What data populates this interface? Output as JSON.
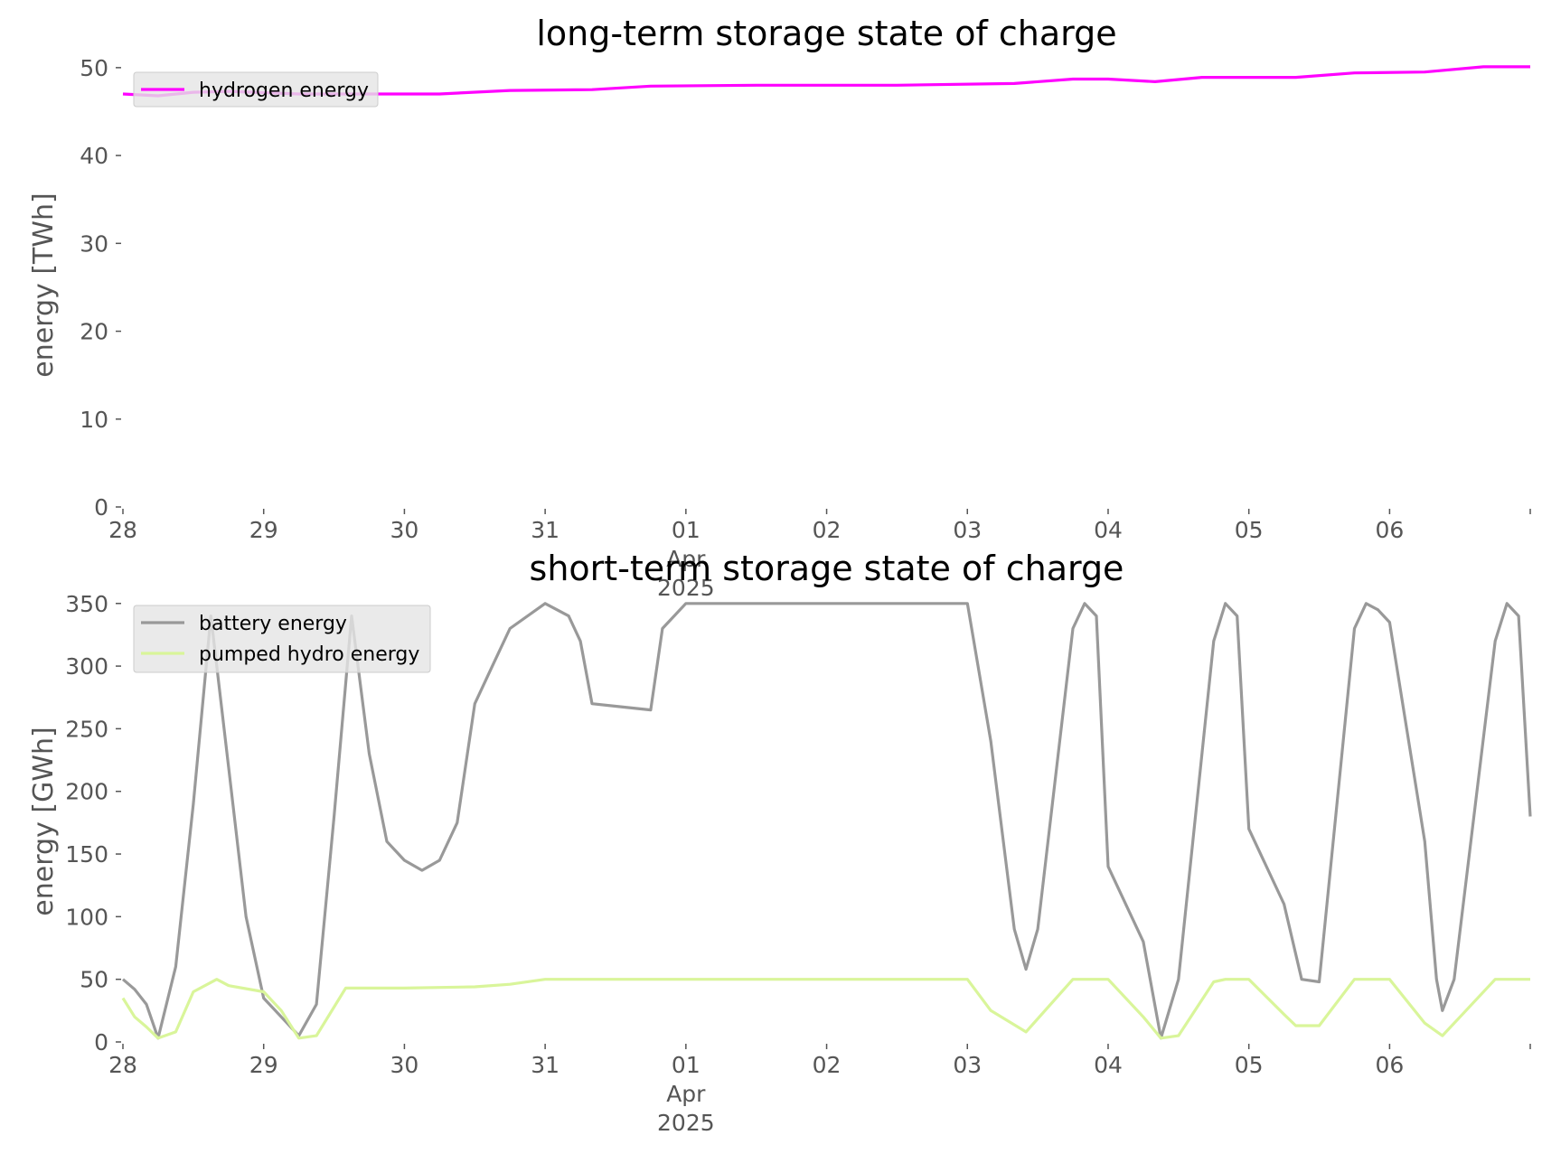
{
  "chart_data": [
    {
      "type": "line",
      "title": "long-term storage state of charge",
      "xlabel": "",
      "ylabel": "energy [TWh]",
      "xlim": [
        "2025-03-28T00:00",
        "2025-04-06T23:59"
      ],
      "ylim": [
        0,
        50.5
      ],
      "yticks": [
        0,
        10,
        20,
        30,
        40,
        50
      ],
      "xticks": [
        {
          "date": "2025-03-28",
          "label": "28",
          "sublabel": ""
        },
        {
          "date": "2025-03-29",
          "label": "29",
          "sublabel": ""
        },
        {
          "date": "2025-03-30",
          "label": "30",
          "sublabel": ""
        },
        {
          "date": "2025-03-31",
          "label": "31",
          "sublabel": ""
        },
        {
          "date": "2025-04-01",
          "label": "01",
          "sublabel": "Apr\n2025"
        },
        {
          "date": "2025-04-02",
          "label": "02",
          "sublabel": ""
        },
        {
          "date": "2025-04-03",
          "label": "03",
          "sublabel": ""
        },
        {
          "date": "2025-04-04",
          "label": "04",
          "sublabel": ""
        },
        {
          "date": "2025-04-05",
          "label": "05",
          "sublabel": ""
        },
        {
          "date": "2025-04-06",
          "label": "06",
          "sublabel": ""
        }
      ],
      "grid": false,
      "legend": "upper-left",
      "series": [
        {
          "name": "hydrogen energy",
          "color": "#ff00ff",
          "points": [
            [
              "2025-03-28T00:00",
              47.0
            ],
            [
              "2025-03-28T06:00",
              46.8
            ],
            [
              "2025-03-28T12:00",
              47.2
            ],
            [
              "2025-03-28T18:00",
              47.3
            ],
            [
              "2025-03-29T06:00",
              47.0
            ],
            [
              "2025-03-29T18:00",
              47.0
            ],
            [
              "2025-03-30T06:00",
              47.0
            ],
            [
              "2025-03-30T18:00",
              47.4
            ],
            [
              "2025-03-31T08:00",
              47.5
            ],
            [
              "2025-03-31T18:00",
              47.9
            ],
            [
              "2025-04-01T12:00",
              48.0
            ],
            [
              "2025-04-02T12:00",
              48.0
            ],
            [
              "2025-04-03T08:00",
              48.2
            ],
            [
              "2025-04-03T18:00",
              48.7
            ],
            [
              "2025-04-04T00:00",
              48.7
            ],
            [
              "2025-04-04T08:00",
              48.4
            ],
            [
              "2025-04-04T16:00",
              48.9
            ],
            [
              "2025-04-05T08:00",
              48.9
            ],
            [
              "2025-04-05T18:00",
              49.4
            ],
            [
              "2025-04-06T06:00",
              49.5
            ],
            [
              "2025-04-06T16:00",
              50.1
            ],
            [
              "2025-04-06T23:59",
              50.1
            ]
          ]
        }
      ]
    },
    {
      "type": "line",
      "title": "short-term storage state of charge",
      "xlabel": "",
      "ylabel": "energy [GWh]",
      "xlim": [
        "2025-03-28T00:00",
        "2025-04-06T23:59"
      ],
      "ylim": [
        0,
        352
      ],
      "yticks": [
        0,
        50,
        100,
        150,
        200,
        250,
        300,
        350
      ],
      "xticks": [
        {
          "date": "2025-03-28",
          "label": "28",
          "sublabel": ""
        },
        {
          "date": "2025-03-29",
          "label": "29",
          "sublabel": ""
        },
        {
          "date": "2025-03-30",
          "label": "30",
          "sublabel": ""
        },
        {
          "date": "2025-03-31",
          "label": "31",
          "sublabel": ""
        },
        {
          "date": "2025-04-01",
          "label": "01",
          "sublabel": "Apr\n2025"
        },
        {
          "date": "2025-04-02",
          "label": "02",
          "sublabel": ""
        },
        {
          "date": "2025-04-03",
          "label": "03",
          "sublabel": ""
        },
        {
          "date": "2025-04-04",
          "label": "04",
          "sublabel": ""
        },
        {
          "date": "2025-04-05",
          "label": "05",
          "sublabel": ""
        },
        {
          "date": "2025-04-06",
          "label": "06",
          "sublabel": ""
        }
      ],
      "grid": false,
      "legend": "upper-left",
      "series": [
        {
          "name": "battery energy",
          "color": "#999999",
          "points": [
            [
              "2025-03-28T00:00",
              50
            ],
            [
              "2025-03-28T02:00",
              42
            ],
            [
              "2025-03-28T04:00",
              30
            ],
            [
              "2025-03-28T06:00",
              3
            ],
            [
              "2025-03-28T09:00",
              60
            ],
            [
              "2025-03-28T12:00",
              190
            ],
            [
              "2025-03-28T15:00",
              340
            ],
            [
              "2025-03-28T18:00",
              220
            ],
            [
              "2025-03-28T21:00",
              100
            ],
            [
              "2025-03-29T00:00",
              35
            ],
            [
              "2025-03-29T03:00",
              20
            ],
            [
              "2025-03-29T06:00",
              5
            ],
            [
              "2025-03-29T09:00",
              30
            ],
            [
              "2025-03-29T12:00",
              180
            ],
            [
              "2025-03-29T15:00",
              340
            ],
            [
              "2025-03-29T18:00",
              230
            ],
            [
              "2025-03-29T21:00",
              160
            ],
            [
              "2025-03-30T00:00",
              145
            ],
            [
              "2025-03-30T03:00",
              137
            ],
            [
              "2025-03-30T06:00",
              145
            ],
            [
              "2025-03-30T09:00",
              175
            ],
            [
              "2025-03-30T12:00",
              270
            ],
            [
              "2025-03-30T15:00",
              300
            ],
            [
              "2025-03-30T18:00",
              330
            ],
            [
              "2025-03-31T00:00",
              350
            ],
            [
              "2025-03-31T04:00",
              340
            ],
            [
              "2025-03-31T06:00",
              320
            ],
            [
              "2025-03-31T08:00",
              270
            ],
            [
              "2025-03-31T12:00",
              268
            ],
            [
              "2025-03-31T18:00",
              265
            ],
            [
              "2025-03-31T20:00",
              330
            ],
            [
              "2025-04-01T00:00",
              350
            ],
            [
              "2025-04-03T00:00",
              350
            ],
            [
              "2025-04-03T04:00",
              240
            ],
            [
              "2025-04-03T08:00",
              90
            ],
            [
              "2025-04-03T10:00",
              58
            ],
            [
              "2025-04-03T12:00",
              90
            ],
            [
              "2025-04-03T18:00",
              330
            ],
            [
              "2025-04-03T20:00",
              350
            ],
            [
              "2025-04-03T22:00",
              340
            ],
            [
              "2025-04-04T00:00",
              140
            ],
            [
              "2025-04-04T06:00",
              80
            ],
            [
              "2025-04-04T09:00",
              3
            ],
            [
              "2025-04-04T12:00",
              50
            ],
            [
              "2025-04-04T18:00",
              320
            ],
            [
              "2025-04-04T20:00",
              350
            ],
            [
              "2025-04-04T22:00",
              340
            ],
            [
              "2025-04-05T00:00",
              170
            ],
            [
              "2025-04-05T06:00",
              110
            ],
            [
              "2025-04-05T09:00",
              50
            ],
            [
              "2025-04-05T12:00",
              48
            ],
            [
              "2025-04-05T18:00",
              330
            ],
            [
              "2025-04-05T20:00",
              350
            ],
            [
              "2025-04-05T22:00",
              345
            ],
            [
              "2025-04-06T00:00",
              335
            ],
            [
              "2025-04-06T06:00",
              160
            ],
            [
              "2025-04-06T08:00",
              50
            ],
            [
              "2025-04-06T09:00",
              25
            ],
            [
              "2025-04-06T11:00",
              50
            ],
            [
              "2025-04-06T18:00",
              320
            ],
            [
              "2025-04-06T20:00",
              350
            ],
            [
              "2025-04-06T22:00",
              340
            ],
            [
              "2025-04-06T23:59",
              180
            ]
          ]
        },
        {
          "name": "pumped hydro energy",
          "color": "#d9f59a",
          "points": [
            [
              "2025-03-28T00:00",
              35
            ],
            [
              "2025-03-28T02:00",
              20
            ],
            [
              "2025-03-28T04:00",
              12
            ],
            [
              "2025-03-28T06:00",
              3
            ],
            [
              "2025-03-28T09:00",
              8
            ],
            [
              "2025-03-28T12:00",
              40
            ],
            [
              "2025-03-28T16:00",
              50
            ],
            [
              "2025-03-28T18:00",
              45
            ],
            [
              "2025-03-29T00:00",
              40
            ],
            [
              "2025-03-29T03:00",
              25
            ],
            [
              "2025-03-29T06:00",
              3
            ],
            [
              "2025-03-29T09:00",
              5
            ],
            [
              "2025-03-29T14:00",
              43
            ],
            [
              "2025-03-30T00:00",
              43
            ],
            [
              "2025-03-30T12:00",
              44
            ],
            [
              "2025-03-30T18:00",
              46
            ],
            [
              "2025-03-31T00:00",
              50
            ],
            [
              "2025-04-03T00:00",
              50
            ],
            [
              "2025-04-03T04:00",
              25
            ],
            [
              "2025-04-03T10:00",
              8
            ],
            [
              "2025-04-03T18:00",
              50
            ],
            [
              "2025-04-04T00:00",
              50
            ],
            [
              "2025-04-04T06:00",
              20
            ],
            [
              "2025-04-04T09:00",
              3
            ],
            [
              "2025-04-04T12:00",
              5
            ],
            [
              "2025-04-04T18:00",
              48
            ],
            [
              "2025-04-04T20:00",
              50
            ],
            [
              "2025-04-05T00:00",
              50
            ],
            [
              "2025-04-05T06:00",
              22
            ],
            [
              "2025-04-05T08:00",
              13
            ],
            [
              "2025-04-05T12:00",
              13
            ],
            [
              "2025-04-05T18:00",
              50
            ],
            [
              "2025-04-06T00:00",
              50
            ],
            [
              "2025-04-06T06:00",
              15
            ],
            [
              "2025-04-06T09:00",
              5
            ],
            [
              "2025-04-06T12:00",
              20
            ],
            [
              "2025-04-06T18:00",
              50
            ],
            [
              "2025-04-06T23:59",
              50
            ]
          ]
        }
      ]
    }
  ]
}
